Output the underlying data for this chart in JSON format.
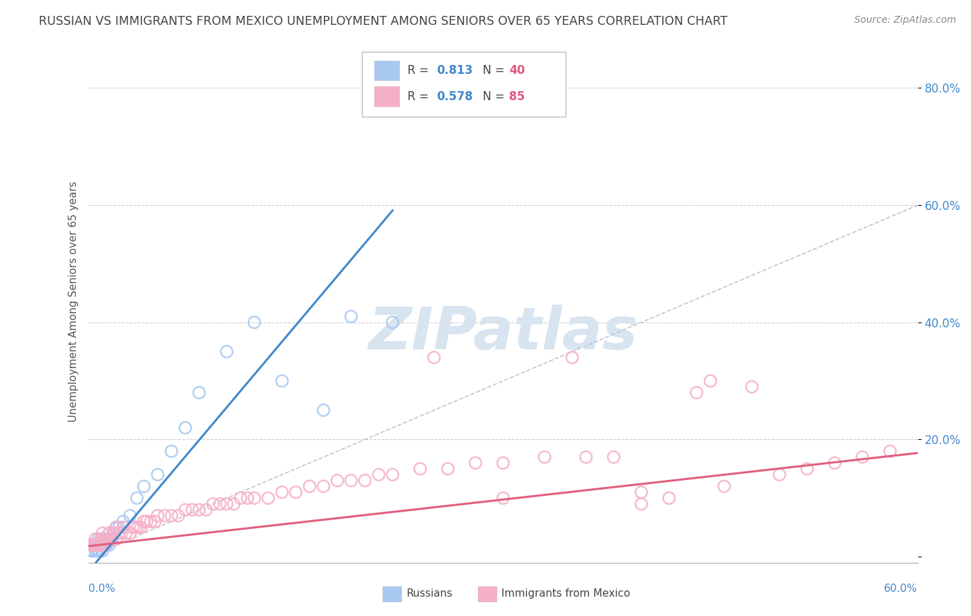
{
  "title": "RUSSIAN VS IMMIGRANTS FROM MEXICO UNEMPLOYMENT AMONG SENIORS OVER 65 YEARS CORRELATION CHART",
  "source": "Source: ZipAtlas.com",
  "ylabel": "Unemployment Among Seniors over 65 years",
  "xlim": [
    0.0,
    0.6
  ],
  "ylim": [
    -0.01,
    0.88
  ],
  "yticks": [
    0.0,
    0.2,
    0.4,
    0.6,
    0.8
  ],
  "ytick_labels": [
    "",
    "20.0%",
    "40.0%",
    "60.0%",
    "80.0%"
  ],
  "blue_color": "#a8c8f0",
  "pink_color": "#f5b0c8",
  "blue_line_color": "#4488cc",
  "pink_line_color": "#e06080",
  "watermark": "ZIPatlas",
  "watermark_color": "#d8e4f0",
  "grid_color": "#cccccc",
  "background_color": "#ffffff",
  "russian_x": [
    0.002,
    0.003,
    0.004,
    0.005,
    0.005,
    0.006,
    0.006,
    0.007,
    0.007,
    0.008,
    0.008,
    0.009,
    0.009,
    0.01,
    0.01,
    0.01,
    0.012,
    0.012,
    0.013,
    0.014,
    0.015,
    0.015,
    0.016,
    0.018,
    0.02,
    0.022,
    0.025,
    0.03,
    0.035,
    0.04,
    0.05,
    0.06,
    0.07,
    0.08,
    0.1,
    0.12,
    0.14,
    0.17,
    0.19,
    0.22
  ],
  "russian_y": [
    0.01,
    0.01,
    0.02,
    0.01,
    0.02,
    0.01,
    0.02,
    0.01,
    0.03,
    0.02,
    0.01,
    0.02,
    0.03,
    0.01,
    0.02,
    0.03,
    0.02,
    0.03,
    0.02,
    0.03,
    0.02,
    0.04,
    0.03,
    0.04,
    0.05,
    0.05,
    0.06,
    0.07,
    0.1,
    0.12,
    0.14,
    0.18,
    0.22,
    0.28,
    0.35,
    0.4,
    0.3,
    0.25,
    0.41,
    0.4
  ],
  "mexico_x": [
    0.001,
    0.002,
    0.003,
    0.004,
    0.005,
    0.005,
    0.006,
    0.007,
    0.008,
    0.009,
    0.01,
    0.01,
    0.01,
    0.012,
    0.012,
    0.013,
    0.014,
    0.015,
    0.015,
    0.016,
    0.017,
    0.018,
    0.019,
    0.02,
    0.02,
    0.022,
    0.024,
    0.025,
    0.027,
    0.03,
    0.032,
    0.034,
    0.036,
    0.038,
    0.04,
    0.042,
    0.045,
    0.048,
    0.05,
    0.055,
    0.06,
    0.065,
    0.07,
    0.075,
    0.08,
    0.085,
    0.09,
    0.095,
    0.1,
    0.105,
    0.11,
    0.115,
    0.12,
    0.13,
    0.14,
    0.15,
    0.16,
    0.17,
    0.18,
    0.19,
    0.2,
    0.21,
    0.22,
    0.24,
    0.26,
    0.28,
    0.3,
    0.33,
    0.36,
    0.38,
    0.4,
    0.42,
    0.44,
    0.46,
    0.48,
    0.5,
    0.52,
    0.54,
    0.56,
    0.58,
    0.25,
    0.3,
    0.35,
    0.4,
    0.45
  ],
  "mexico_y": [
    0.02,
    0.02,
    0.02,
    0.02,
    0.02,
    0.03,
    0.02,
    0.02,
    0.02,
    0.03,
    0.02,
    0.03,
    0.04,
    0.02,
    0.03,
    0.03,
    0.03,
    0.03,
    0.04,
    0.03,
    0.03,
    0.04,
    0.04,
    0.03,
    0.05,
    0.04,
    0.04,
    0.05,
    0.04,
    0.04,
    0.05,
    0.05,
    0.05,
    0.05,
    0.06,
    0.06,
    0.06,
    0.06,
    0.07,
    0.07,
    0.07,
    0.07,
    0.08,
    0.08,
    0.08,
    0.08,
    0.09,
    0.09,
    0.09,
    0.09,
    0.1,
    0.1,
    0.1,
    0.1,
    0.11,
    0.11,
    0.12,
    0.12,
    0.13,
    0.13,
    0.13,
    0.14,
    0.14,
    0.15,
    0.15,
    0.16,
    0.16,
    0.17,
    0.17,
    0.17,
    0.09,
    0.1,
    0.28,
    0.12,
    0.29,
    0.14,
    0.15,
    0.16,
    0.17,
    0.18,
    0.34,
    0.1,
    0.34,
    0.11,
    0.3
  ]
}
